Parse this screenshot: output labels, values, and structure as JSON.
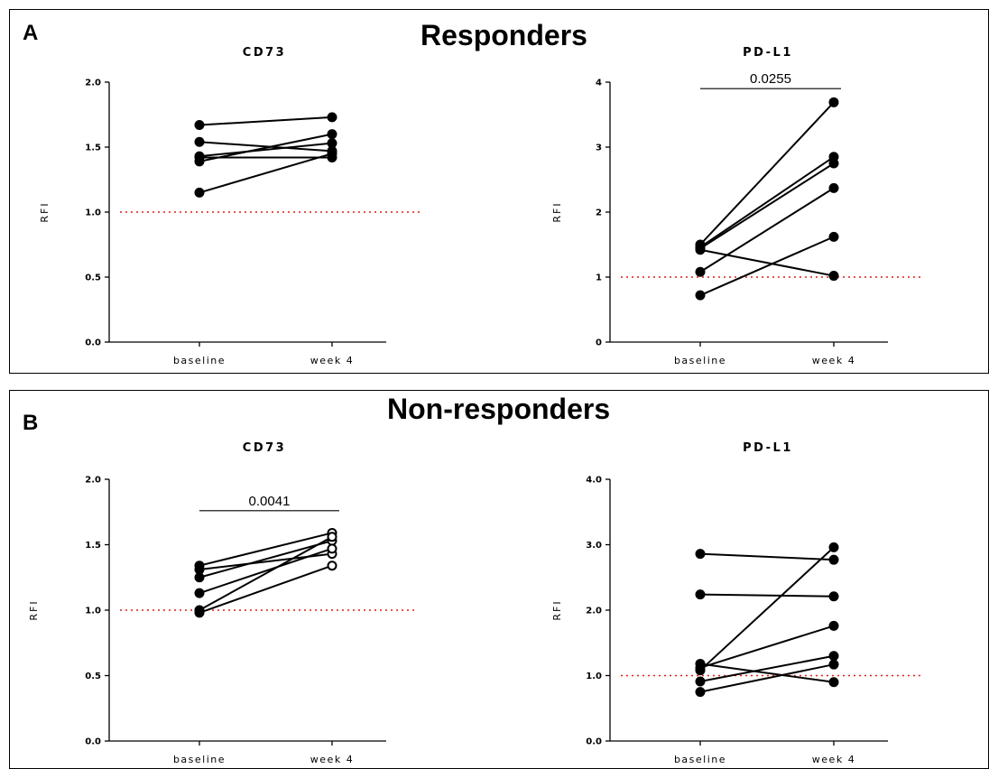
{
  "panels": [
    {
      "letter": "A",
      "group_title": "Responders"
    },
    {
      "letter": "B",
      "group_title": "Non-responders"
    }
  ],
  "chart_data": [
    {
      "type": "line",
      "title": "CD73",
      "panel": "A",
      "ylabel": "RFI",
      "categories": [
        "baseline",
        "week 4"
      ],
      "ylim": [
        0,
        2.0
      ],
      "yticks": [
        "0.0",
        "0.5",
        "1.0",
        "1.5",
        "2.0"
      ],
      "ytick_values": [
        0,
        0.5,
        1.0,
        1.5,
        2.0
      ],
      "reference_line": 1.0,
      "reference_color": "#e41a1c",
      "series": [
        {
          "values": [
            1.67,
            1.73
          ],
          "marker": "filled"
        },
        {
          "values": [
            1.54,
            1.47
          ],
          "marker": "filled"
        },
        {
          "values": [
            1.43,
            1.53
          ],
          "marker": "filled"
        },
        {
          "values": [
            1.42,
            1.42
          ],
          "marker": "filled"
        },
        {
          "values": [
            1.39,
            1.6
          ],
          "marker": "filled"
        },
        {
          "values": [
            1.15,
            1.45
          ],
          "marker": "filled"
        }
      ],
      "significance": null
    },
    {
      "type": "line",
      "title": "PD-L1",
      "panel": "A",
      "ylabel": "RFI",
      "categories": [
        "baseline",
        "week 4"
      ],
      "ylim": [
        0,
        4
      ],
      "yticks": [
        "0",
        "1",
        "2",
        "3",
        "4"
      ],
      "ytick_values": [
        0,
        1,
        2,
        3,
        4
      ],
      "reference_line": 1.0,
      "reference_color": "#e41a1c",
      "series": [
        {
          "values": [
            1.5,
            3.69
          ],
          "marker": "filled"
        },
        {
          "values": [
            1.46,
            2.85
          ],
          "marker": "filled"
        },
        {
          "values": [
            1.44,
            2.75
          ],
          "marker": "filled"
        },
        {
          "values": [
            1.42,
            1.02
          ],
          "marker": "filled"
        },
        {
          "values": [
            1.08,
            2.37
          ],
          "marker": "filled"
        },
        {
          "values": [
            0.72,
            1.62
          ],
          "marker": "filled"
        }
      ],
      "significance": {
        "label": "0.0255",
        "y": 3.9
      }
    },
    {
      "type": "line",
      "title": "CD73",
      "panel": "B",
      "ylabel": "RFI",
      "categories": [
        "baseline",
        "week 4"
      ],
      "ylim": [
        0,
        2.0
      ],
      "yticks": [
        "0.0",
        "0.5",
        "1.0",
        "1.5",
        "2.0"
      ],
      "ytick_values": [
        0,
        0.5,
        1.0,
        1.5,
        2.0
      ],
      "reference_line": 1.0,
      "reference_color": "#e41a1c",
      "series": [
        {
          "values": [
            1.34,
            1.59
          ],
          "marker": "filled-open"
        },
        {
          "values": [
            1.31,
            1.43
          ],
          "marker": "filled-open"
        },
        {
          "values": [
            1.25,
            1.53
          ],
          "marker": "filled-open"
        },
        {
          "values": [
            1.13,
            1.47
          ],
          "marker": "filled-open"
        },
        {
          "values": [
            1.0,
            1.56
          ],
          "marker": "filled-open"
        },
        {
          "values": [
            0.98,
            1.34
          ],
          "marker": "filled-open"
        }
      ],
      "significance": {
        "label": "0.0041",
        "y": 1.76
      }
    },
    {
      "type": "line",
      "title": "PD-L1",
      "panel": "B",
      "ylabel": "RFI",
      "categories": [
        "baseline",
        "week 4"
      ],
      "ylim": [
        0,
        4.0
      ],
      "yticks": [
        "0.0",
        "1.0",
        "2.0",
        "3.0",
        "4.0"
      ],
      "ytick_values": [
        0,
        1,
        2,
        3,
        4
      ],
      "reference_line": 1.0,
      "reference_color": "#e41a1c",
      "series": [
        {
          "values": [
            2.86,
            2.77
          ],
          "marker": "filled"
        },
        {
          "values": [
            2.24,
            2.21
          ],
          "marker": "filled"
        },
        {
          "values": [
            1.18,
            0.9
          ],
          "marker": "filled"
        },
        {
          "values": [
            1.12,
            1.76
          ],
          "marker": "filled"
        },
        {
          "values": [
            1.08,
            2.96
          ],
          "marker": "filled"
        },
        {
          "values": [
            0.91,
            1.3
          ],
          "marker": "filled"
        },
        {
          "values": [
            0.75,
            1.17
          ],
          "marker": "filled"
        }
      ],
      "significance": null
    }
  ]
}
